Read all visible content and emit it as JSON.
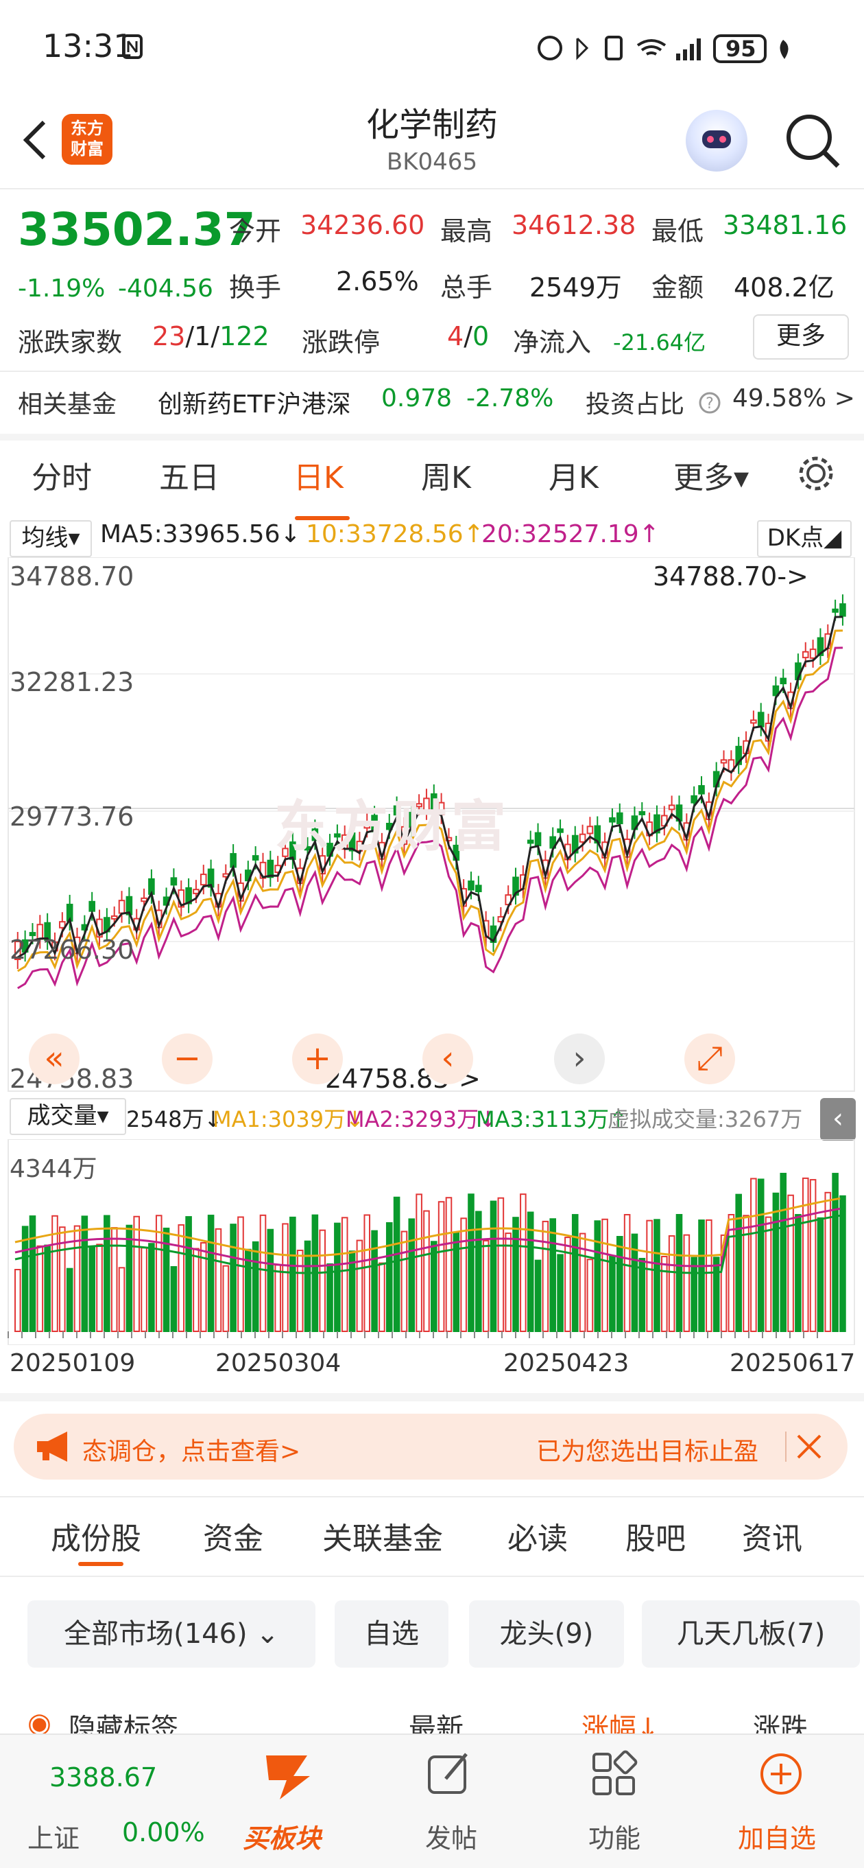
{
  "status_bar": {
    "time": "13:31",
    "battery": "95"
  },
  "header": {
    "logo_line1": "东方",
    "logo_line2": "财富",
    "title": "化学制药",
    "code": "BK0465"
  },
  "quote": {
    "price": "33502.37",
    "change_pct": "-1.19%",
    "change": "-404.56",
    "open_label": "今开",
    "open": "34236.60",
    "high_label": "最高",
    "high": "34612.38",
    "low_label": "最低",
    "low": "33481.16",
    "turnover_label": "换手",
    "turnover": "2.65%",
    "volume_label": "总手",
    "volume": "2549万",
    "amount_label": "金额",
    "amount": "408.2亿",
    "breadth_label": "涨跌家数",
    "up": "23",
    "flat": "1",
    "down": "122",
    "limit_label": "涨跌停",
    "limit_up": "4",
    "limit_down": "0",
    "inflow_label": "净流入",
    "inflow": "-21.64亿",
    "more": "更多"
  },
  "fund": {
    "label": "相关基金",
    "name": "创新药ETF沪港深",
    "price": "0.978",
    "pct": "-2.78%",
    "ratio_label": "投资占比",
    "ratio": "49.58% >"
  },
  "chart_tabs": [
    "分时",
    "五日",
    "日K",
    "周K",
    "月K",
    "更多▾"
  ],
  "ma_bar": {
    "selector": "均线▾",
    "ma5": "MA5:33965.56↓",
    "ma10": "10:33728.56↑",
    "ma20": "20:32527.19↑",
    "dk": "DK点◢"
  },
  "price_axis": [
    "34788.70",
    "32281.23",
    "29773.76",
    "27266.30",
    "24758.83"
  ],
  "annotations": {
    "high": "34788.70->",
    "low": "24758.83->"
  },
  "watermark": "东方财富",
  "vol_bar": {
    "selector": "成交量▾",
    "vol": "2548万↓",
    "ma1": "MA1:3039万↓",
    "ma2": "MA2:3293万↓",
    "ma3": "MA3:3113万↑",
    "virtual": "虚拟成交量:3267万",
    "max": "4344万"
  },
  "date_axis": [
    "20250109",
    "20250304",
    "20250423",
    "20250617"
  ],
  "chart_data": {
    "type": "bar",
    "title": "",
    "ylim": [
      24758.83,
      34788.7
    ],
    "series": [
      {
        "name": "MA5",
        "last": 33965.56
      },
      {
        "name": "MA10",
        "last": 33728.56
      },
      {
        "name": "MA20",
        "last": 32527.19
      }
    ],
    "volume_max": "4344万",
    "x_ticks": [
      "20250109",
      "20250304",
      "20250423",
      "20250617"
    ]
  },
  "banner": {
    "left": "态调仓，点击查看>",
    "right": "已为您选出目标止盈"
  },
  "lower_tabs": [
    "成份股",
    "资金",
    "关联基金",
    "必读",
    "股吧",
    "资讯"
  ],
  "filters": [
    "全部市场(146)",
    "自选",
    "龙头(9)",
    "几天几板(7)"
  ],
  "list_header": {
    "hide": "隐藏标签",
    "latest": "最新",
    "pct": "涨幅↓",
    "chg": "涨跌"
  },
  "bottom_bar": {
    "index_value": "3388.67",
    "index_name": "上证",
    "index_pct": "0.00%",
    "buy": "买板块",
    "post": "发帖",
    "func": "功能",
    "add": "加自选"
  }
}
